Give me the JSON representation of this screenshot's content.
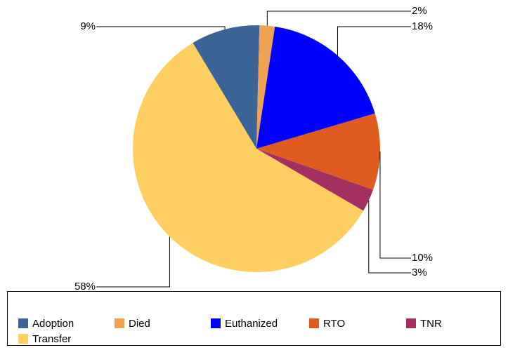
{
  "chart_data": {
    "type": "pie",
    "categories": [
      "Adoption",
      "Died",
      "Euthanized",
      "RTO",
      "TNR",
      "Transfer"
    ],
    "values": [
      9,
      2,
      18,
      10,
      3,
      58
    ],
    "value_labels": [
      "9%",
      "2%",
      "18%",
      "10%",
      "3%",
      "58%"
    ],
    "colors": [
      "#3a6596",
      "#f0a252",
      "#0000ff",
      "#e05b1f",
      "#a3305f",
      "#ffce63"
    ],
    "legend": "bottom"
  }
}
